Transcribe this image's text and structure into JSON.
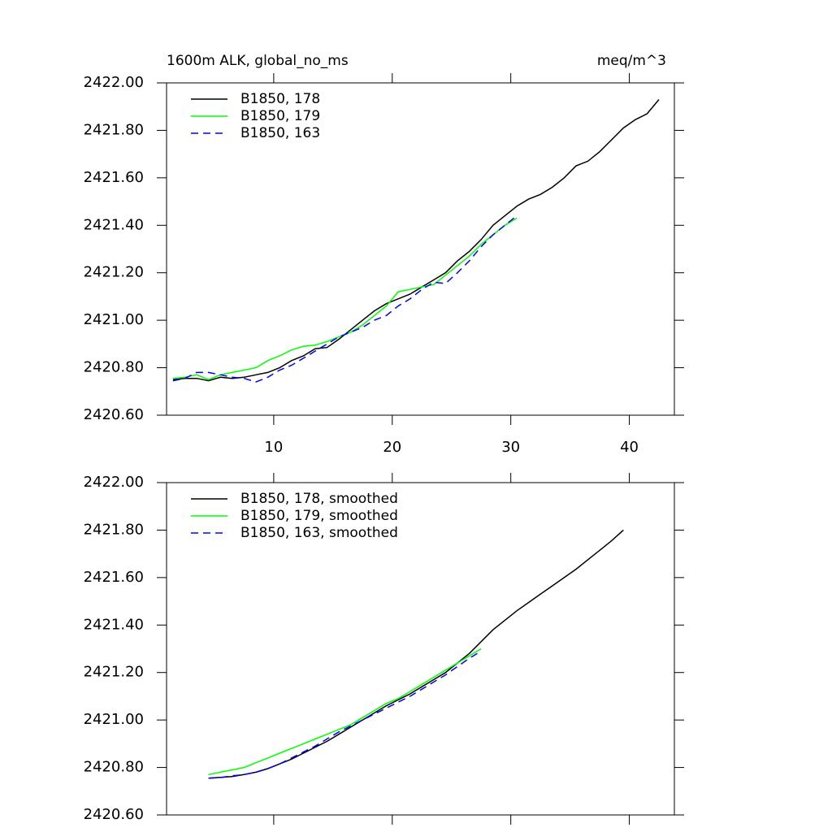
{
  "chart_data": [
    {
      "type": "line",
      "title": "1600m ALK, global_no_ms",
      "units": "meq/m^3",
      "xlim": [
        0.96,
        43.8
      ],
      "xticks": [
        10,
        20,
        30,
        40
      ],
      "xtick_labels_shown": true,
      "ylim": [
        2420.6,
        2422.0
      ],
      "yticks": [
        {
          "value": 2420.6,
          "label": "2420.60"
        },
        {
          "value": 2420.8,
          "label": "2420.80"
        },
        {
          "value": 2421.0,
          "label": "2421.00"
        },
        {
          "value": 2421.2,
          "label": "2421.20"
        },
        {
          "value": 2421.4,
          "label": "2421.40"
        },
        {
          "value": 2421.6,
          "label": "2421.60"
        },
        {
          "value": 2421.8,
          "label": "2421.80"
        },
        {
          "value": 2422.0,
          "label": "2422.00"
        }
      ],
      "legend": "upper left",
      "series": [
        {
          "name": "B1850, 178",
          "color": "#000000",
          "dash": false,
          "x": [
            1.5,
            2.5,
            3.5,
            4.5,
            5.5,
            6.5,
            7.5,
            8.5,
            9.5,
            10.5,
            11.5,
            12.5,
            13.5,
            14.5,
            15.5,
            16.5,
            17.5,
            18.5,
            19.5,
            20.5,
            21.5,
            22.5,
            23.5,
            24.5,
            25.5,
            26.5,
            27.5,
            28.5,
            29.5,
            30.5,
            31.5,
            32.5,
            33.5,
            34.5,
            35.5,
            36.5,
            37.5,
            38.5,
            39.5,
            40.5,
            41.5,
            42.5
          ],
          "values": [
            2420.75,
            2420.755,
            2420.755,
            2420.745,
            2420.76,
            2420.755,
            2420.76,
            2420.77,
            2420.78,
            2420.8,
            2420.83,
            2420.85,
            2420.88,
            2420.885,
            2420.92,
            2420.96,
            2421.0,
            2421.04,
            2421.07,
            2421.09,
            2421.11,
            2421.14,
            2421.17,
            2421.2,
            2421.25,
            2421.29,
            2421.34,
            2421.4,
            2421.44,
            2421.48,
            2421.51,
            2421.53,
            2421.56,
            2421.6,
            2421.65,
            2421.67,
            2421.71,
            2421.76,
            2421.81,
            2421.845,
            2421.87,
            2421.93
          ]
        },
        {
          "name": "B1850, 179",
          "color": "#00ff00",
          "dash": false,
          "x": [
            1.5,
            2.5,
            3.5,
            4.5,
            5.5,
            6.5,
            7.5,
            8.5,
            9.5,
            10.5,
            11.5,
            12.5,
            13.5,
            14.5,
            15.5,
            16.5,
            17.5,
            18.5,
            19.5,
            20.5,
            21.5,
            22.5,
            23.5,
            24.5,
            25.5,
            26.5,
            27.5,
            28.5,
            29.5,
            30.5
          ],
          "values": [
            2420.755,
            2420.76,
            2420.77,
            2420.75,
            2420.77,
            2420.78,
            2420.79,
            2420.8,
            2420.83,
            2420.85,
            2420.875,
            2420.89,
            2420.895,
            2420.91,
            2420.93,
            2420.95,
            2420.98,
            2421.02,
            2421.06,
            2421.12,
            2421.13,
            2421.14,
            2421.15,
            2421.19,
            2421.23,
            2421.27,
            2421.32,
            2421.36,
            2421.4,
            2421.43
          ]
        },
        {
          "name": "B1850, 163",
          "color": "#0000ff",
          "dash": true,
          "x": [
            1.5,
            2.5,
            3.5,
            4.5,
            5.5,
            6.5,
            7.5,
            8.5,
            9.5,
            10.5,
            11.5,
            12.5,
            13.5,
            14.5,
            15.5,
            16.5,
            17.5,
            18.5,
            19.5,
            20.5,
            21.5,
            22.5,
            23.5,
            24.5,
            25.5,
            26.5,
            27.5,
            28.5,
            29.5,
            30.5
          ],
          "values": [
            2420.745,
            2420.755,
            2420.78,
            2420.78,
            2420.77,
            2420.76,
            2420.755,
            2420.74,
            2420.76,
            2420.79,
            2420.81,
            2420.84,
            2420.87,
            2420.9,
            2420.93,
            2420.95,
            2420.97,
            2421.0,
            2421.02,
            2421.06,
            2421.09,
            2421.13,
            2421.16,
            2421.155,
            2421.2,
            2421.25,
            2421.31,
            2421.36,
            2421.4,
            2421.44
          ]
        }
      ]
    },
    {
      "type": "line",
      "xlim": [
        0.96,
        43.8
      ],
      "xticks": [
        10,
        20,
        30,
        40
      ],
      "xtick_labels_shown": false,
      "ylim": [
        2420.6,
        2422.0
      ],
      "yticks": [
        {
          "value": 2420.6,
          "label": "2420.60"
        },
        {
          "value": 2420.8,
          "label": "2420.80"
        },
        {
          "value": 2421.0,
          "label": "2421.00"
        },
        {
          "value": 2421.2,
          "label": "2421.20"
        },
        {
          "value": 2421.4,
          "label": "2421.40"
        },
        {
          "value": 2421.6,
          "label": "2421.60"
        },
        {
          "value": 2421.8,
          "label": "2421.80"
        },
        {
          "value": 2422.0,
          "label": "2422.00"
        }
      ],
      "legend": "upper left",
      "series": [
        {
          "name": "B1850, 178, smoothed",
          "color": "#000000",
          "dash": false,
          "x": [
            4.5,
            5.5,
            6.5,
            7.5,
            8.5,
            9.5,
            10.5,
            11.5,
            12.5,
            13.5,
            14.5,
            15.5,
            16.5,
            17.5,
            18.5,
            19.5,
            20.5,
            21.5,
            22.5,
            23.5,
            24.5,
            25.5,
            26.5,
            27.5,
            28.5,
            29.5,
            30.5,
            31.5,
            32.5,
            33.5,
            34.5,
            35.5,
            36.5,
            37.5,
            38.5,
            39.5
          ],
          "values": [
            2420.755,
            2420.758,
            2420.762,
            2420.77,
            2420.78,
            2420.795,
            2420.815,
            2420.835,
            2420.86,
            2420.885,
            2420.91,
            2420.94,
            2420.97,
            2421.0,
            2421.03,
            2421.06,
            2421.085,
            2421.11,
            2421.14,
            2421.17,
            2421.2,
            2421.24,
            2421.28,
            2421.33,
            2421.38,
            2421.42,
            2421.46,
            2421.495,
            2421.53,
            2421.565,
            2421.6,
            2421.635,
            2421.675,
            2421.715,
            2421.755,
            2421.8
          ]
        },
        {
          "name": "B1850, 179, smoothed",
          "color": "#00ff00",
          "dash": false,
          "x": [
            4.5,
            5.5,
            6.5,
            7.5,
            8.5,
            9.5,
            10.5,
            11.5,
            12.5,
            13.5,
            14.5,
            15.5,
            16.5,
            17.5,
            18.5,
            19.5,
            20.5,
            21.5,
            22.5,
            23.5,
            24.5,
            25.5,
            26.5,
            27.5
          ],
          "values": [
            2420.77,
            2420.78,
            2420.79,
            2420.8,
            2420.82,
            2420.84,
            2420.86,
            2420.88,
            2420.9,
            2420.92,
            2420.94,
            2420.96,
            2420.98,
            2421.01,
            2421.04,
            2421.07,
            2421.09,
            2421.12,
            2421.15,
            2421.18,
            2421.21,
            2421.24,
            2421.27,
            2421.3
          ]
        },
        {
          "name": "B1850, 163, smoothed",
          "color": "#0000ff",
          "dash": true,
          "x": [
            4.5,
            5.5,
            6.5,
            7.5,
            8.5,
            9.5,
            10.5,
            11.5,
            12.5,
            13.5,
            14.5,
            15.5,
            16.5,
            17.5,
            18.5,
            19.5,
            20.5,
            21.5,
            22.5,
            23.5,
            24.5,
            25.5,
            26.5,
            27.5
          ],
          "values": [
            2420.755,
            2420.757,
            2420.765,
            2420.77,
            2420.78,
            2420.795,
            2420.815,
            2420.84,
            2420.865,
            2420.89,
            2420.92,
            2420.95,
            2420.975,
            2421.0,
            2421.025,
            2421.05,
            2421.075,
            2421.1,
            2421.13,
            2421.16,
            2421.19,
            2421.225,
            2421.26,
            2421.29
          ]
        }
      ]
    }
  ]
}
